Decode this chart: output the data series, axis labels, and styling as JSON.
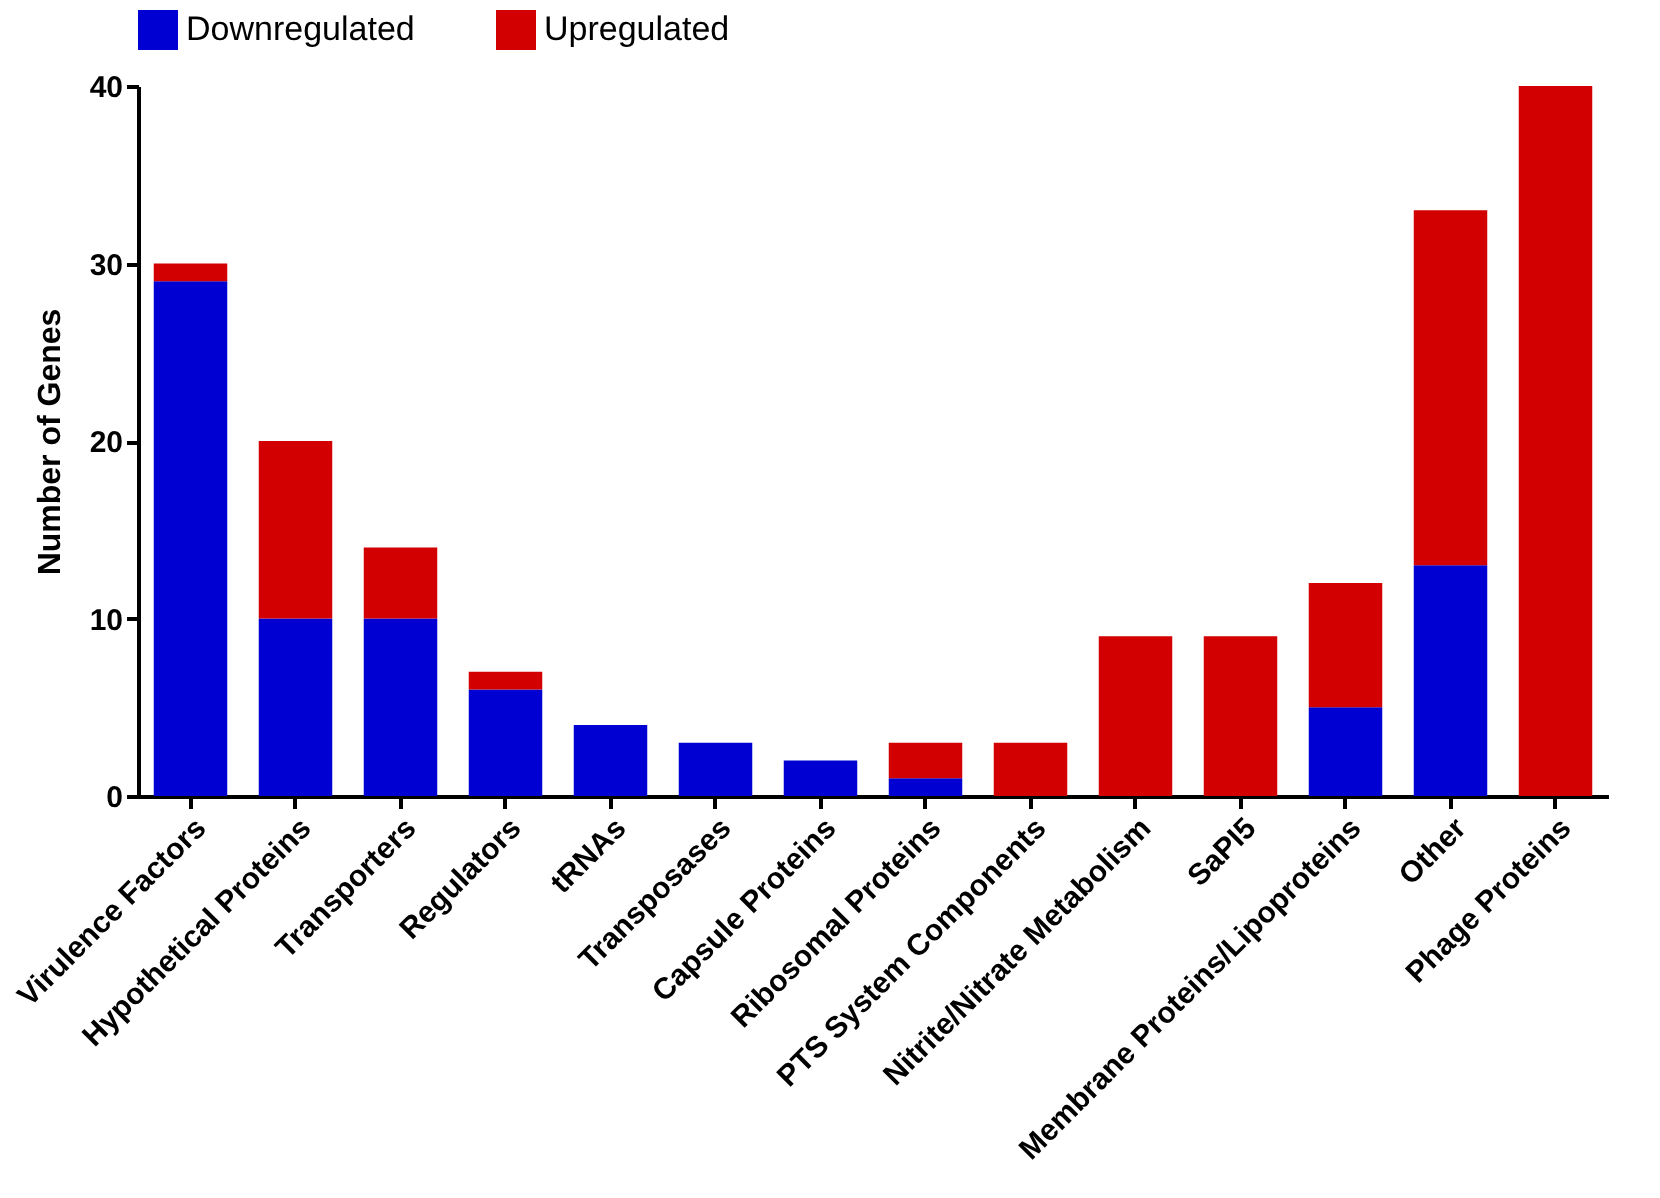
{
  "chart_data": {
    "type": "bar",
    "stacked": true,
    "ylabel": "Number of Genes",
    "categories": [
      "Virulence Factors",
      "Hypothetical Proteins",
      "Transporters",
      "Regulators",
      "tRNAs",
      "Transposases",
      "Capsule Proteins",
      "Ribosomal Proteins",
      "PTS System Components",
      "Nitrite/Nitrate Metabolism",
      "SaPI5",
      "Membrane Proteins/Lipoproteins",
      "Other",
      "Phage Proteins"
    ],
    "series": [
      {
        "name": "Downregulated",
        "color": "#0000d2",
        "values": [
          29,
          10,
          10,
          6,
          4,
          3,
          2,
          1,
          0,
          0,
          0,
          5,
          13,
          0
        ]
      },
      {
        "name": "Upregulated",
        "color": "#d20000",
        "values": [
          1,
          10,
          4,
          1,
          0,
          0,
          0,
          2,
          3,
          9,
          9,
          7,
          20,
          40
        ]
      }
    ],
    "ylim": [
      0,
      40
    ],
    "yticks": [
      0,
      10,
      20,
      30,
      40
    ],
    "grid": false,
    "legend": "top"
  }
}
